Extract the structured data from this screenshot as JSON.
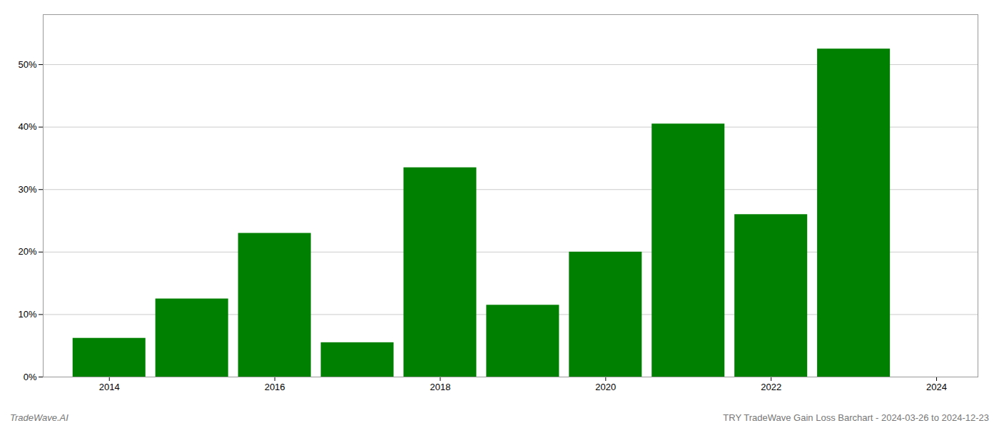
{
  "chart_data": {
    "type": "bar",
    "title": "TRY TradeWave Gain Loss Barchart - 2024-03-26 to 2024-12-23",
    "annotations": [
      "TradeWave.AI"
    ],
    "x": [
      2014,
      2015,
      2016,
      2017,
      2018,
      2019,
      2020,
      2021,
      2022,
      2023
    ],
    "values": [
      6.2,
      12.5,
      23.0,
      5.5,
      33.5,
      11.5,
      20.0,
      40.5,
      26.0,
      52.5
    ],
    "color": "#008000",
    "xlim": [
      2013.2,
      2024.5
    ],
    "xticks": [
      2014,
      2016,
      2018,
      2020,
      2022,
      2024
    ],
    "ylim": [
      0,
      58
    ],
    "yticks": [
      {
        "value": 0,
        "label": "0%"
      },
      {
        "value": 10,
        "label": "10%"
      },
      {
        "value": 20,
        "label": "20%"
      },
      {
        "value": 30,
        "label": "30%"
      },
      {
        "value": 40,
        "label": "40%"
      },
      {
        "value": 50,
        "label": "50%"
      }
    ],
    "grid": true
  }
}
